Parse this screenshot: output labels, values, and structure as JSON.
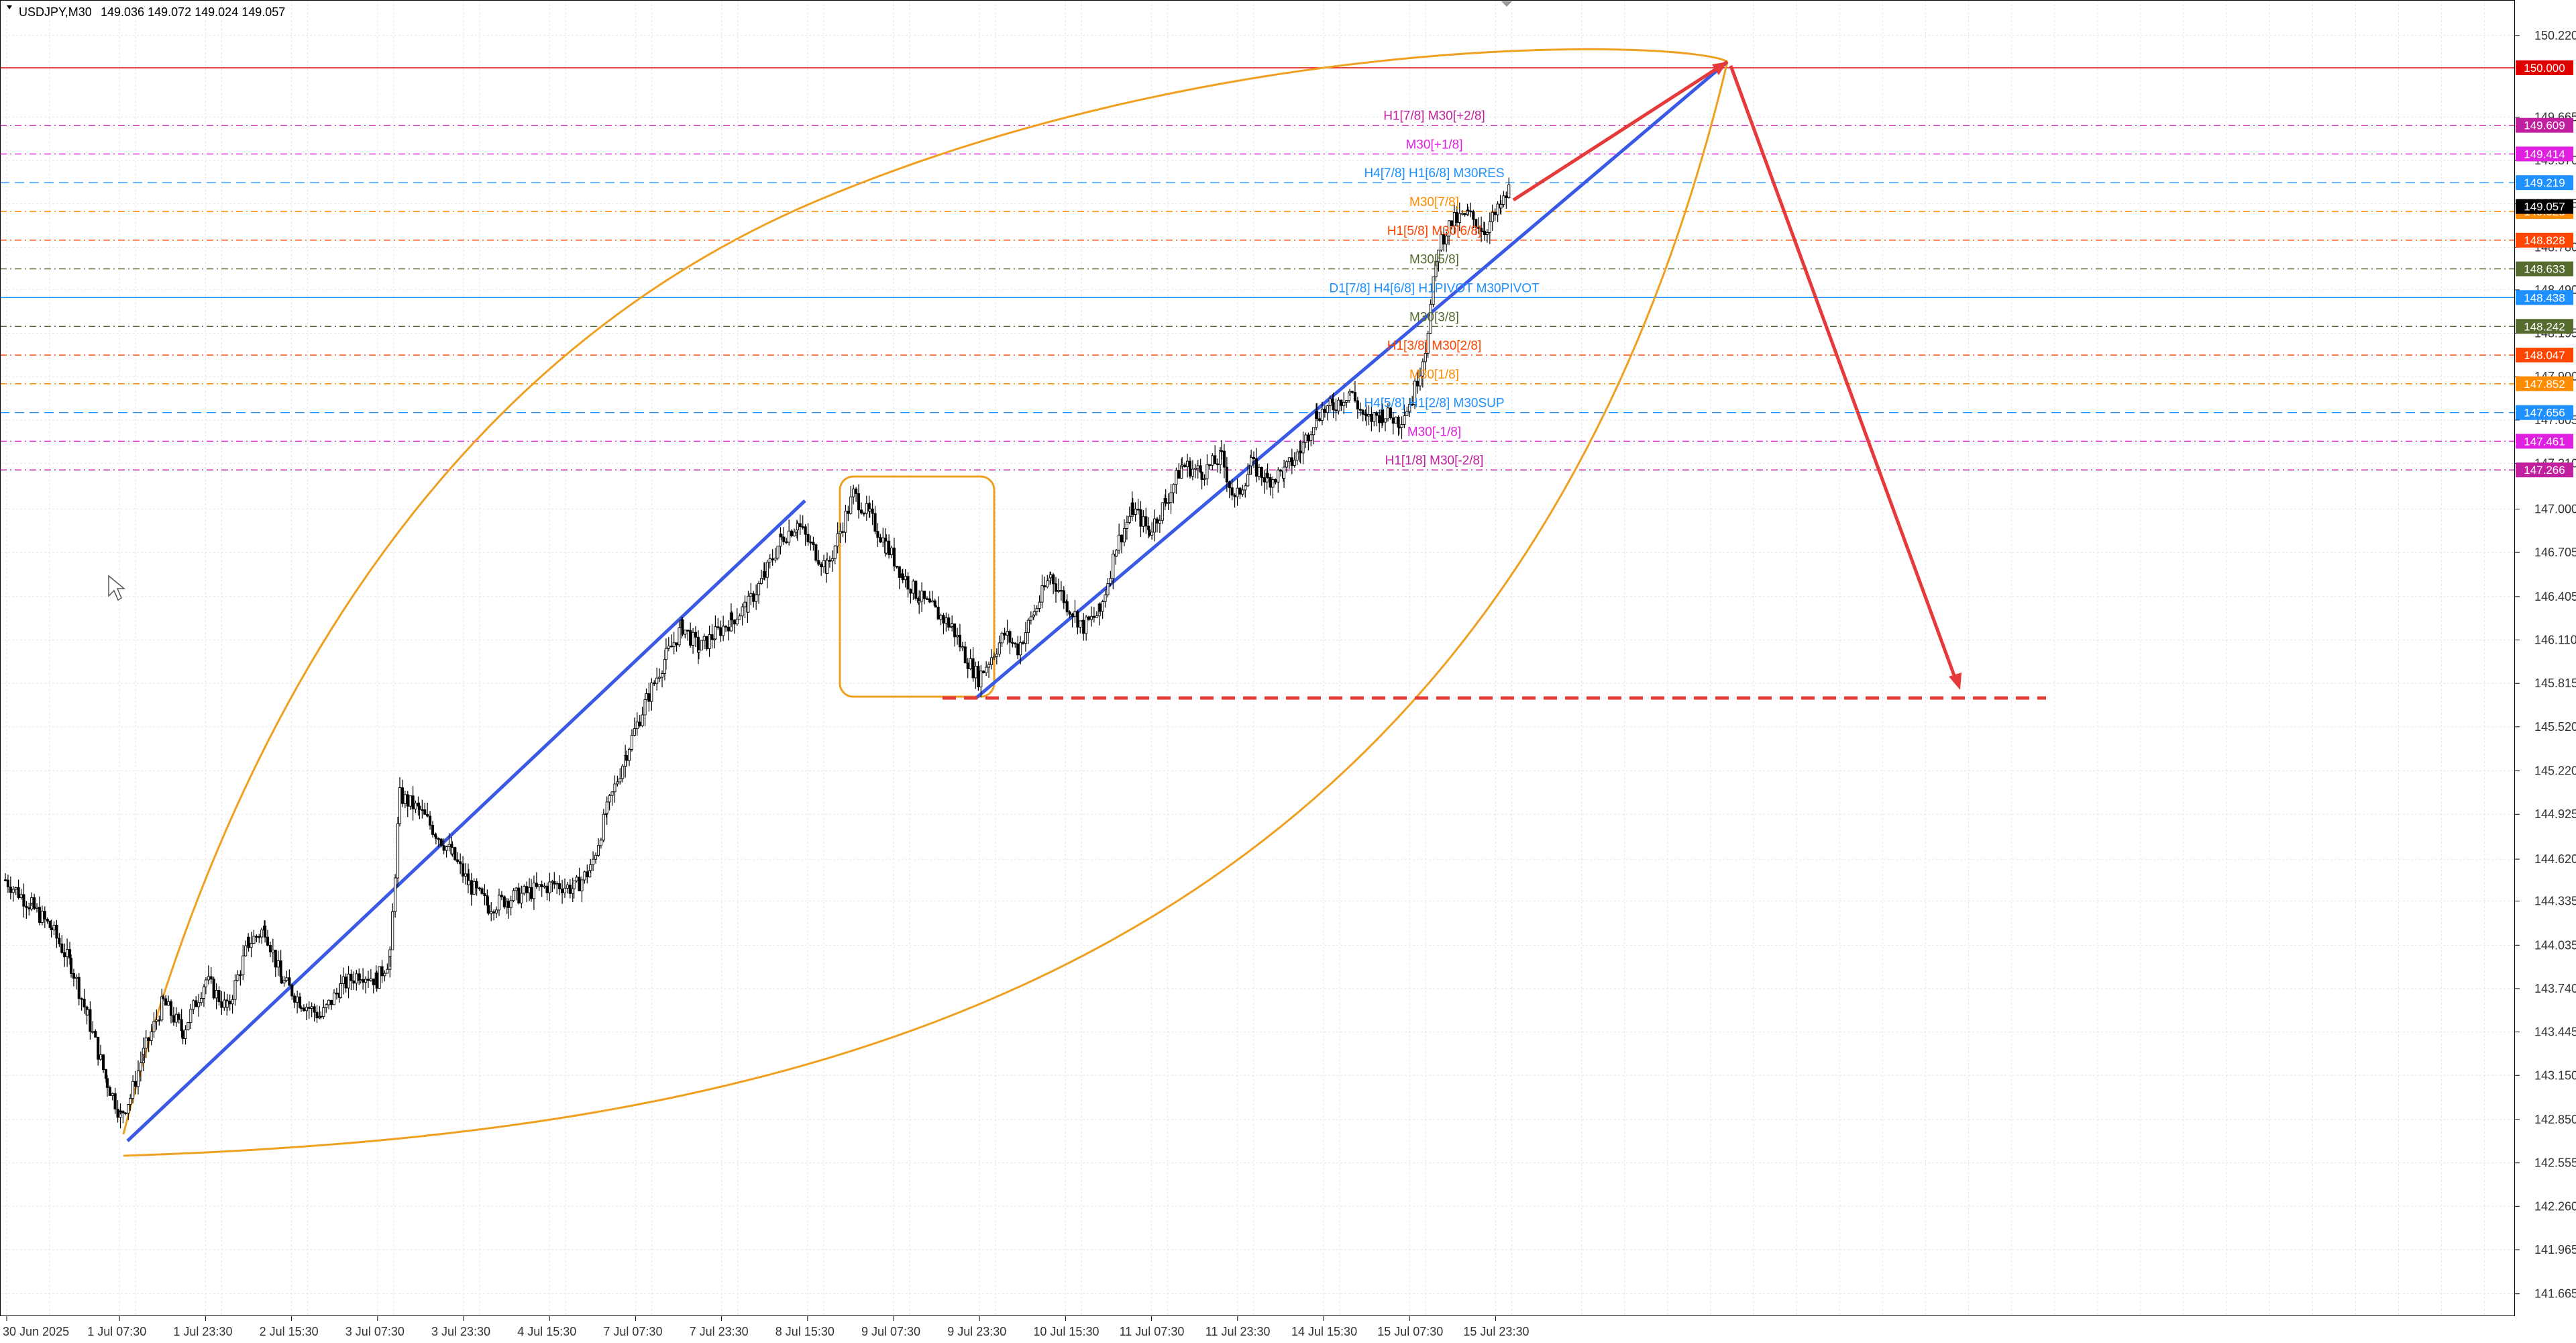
{
  "header": {
    "symbol": "USDJPY,M30",
    "ohlc": "149.036 149.072 149.024 149.057"
  },
  "chart_data": {
    "type": "candlestick",
    "symbol": "USDJPY",
    "timeframe": "M30",
    "ylim": [
      141.4,
      150.4
    ],
    "grid": true,
    "y_ticks": [
      "150.220",
      "149.665",
      "149.370",
      "149.075",
      "148.780",
      "148.490",
      "148.195",
      "147.900",
      "147.605",
      "147.310",
      "147.000",
      "146.705",
      "146.405",
      "146.110",
      "145.815",
      "145.520",
      "145.220",
      "144.925",
      "144.620",
      "144.335",
      "144.035",
      "143.740",
      "143.445",
      "143.150",
      "142.850",
      "142.555",
      "142.260",
      "141.965",
      "141.665"
    ],
    "x_ticks": [
      "30 Jun 2025",
      "1 Jul 07:30",
      "1 Jul 23:30",
      "2 Jul 15:30",
      "3 Jul 07:30",
      "3 Jul 23:30",
      "4 Jul 15:30",
      "7 Jul 07:30",
      "7 Jul 23:30",
      "8 Jul 15:30",
      "9 Jul 07:30",
      "9 Jul 23:30",
      "10 Jul 15:30",
      "11 Jul 07:30",
      "11 Jul 23:30",
      "14 Jul 15:30",
      "15 Jul 07:30",
      "15 Jul 23:30"
    ],
    "price_path": [
      [
        0,
        144.48
      ],
      [
        16,
        144.3
      ],
      [
        28,
        144.15
      ],
      [
        40,
        143.9
      ],
      [
        50,
        143.55
      ],
      [
        62,
        143.1
      ],
      [
        70,
        142.88
      ],
      [
        76,
        143.0
      ],
      [
        84,
        143.3
      ],
      [
        96,
        143.65
      ],
      [
        108,
        143.45
      ],
      [
        122,
        143.8
      ],
      [
        135,
        143.6
      ],
      [
        148,
        144.05
      ],
      [
        158,
        144.15
      ],
      [
        168,
        143.8
      ],
      [
        180,
        143.65
      ],
      [
        192,
        143.55
      ],
      [
        204,
        143.75
      ],
      [
        216,
        143.85
      ],
      [
        226,
        143.8
      ],
      [
        234,
        143.95
      ],
      [
        240,
        145.05
      ],
      [
        252,
        144.95
      ],
      [
        262,
        144.8
      ],
      [
        272,
        144.65
      ],
      [
        282,
        144.45
      ],
      [
        294,
        144.3
      ],
      [
        306,
        144.35
      ],
      [
        320,
        144.4
      ],
      [
        334,
        144.45
      ],
      [
        346,
        144.42
      ],
      [
        356,
        144.55
      ],
      [
        366,
        144.95
      ],
      [
        378,
        145.35
      ],
      [
        390,
        145.7
      ],
      [
        402,
        146.0
      ],
      [
        412,
        146.2
      ],
      [
        422,
        146.05
      ],
      [
        432,
        146.15
      ],
      [
        442,
        146.25
      ],
      [
        452,
        146.35
      ],
      [
        462,
        146.55
      ],
      [
        472,
        146.8
      ],
      [
        482,
        146.9
      ],
      [
        490,
        146.75
      ],
      [
        500,
        146.6
      ],
      [
        508,
        146.85
      ],
      [
        516,
        147.1
      ],
      [
        526,
        146.95
      ],
      [
        536,
        146.75
      ],
      [
        546,
        146.55
      ],
      [
        556,
        146.4
      ],
      [
        566,
        146.3
      ],
      [
        576,
        146.2
      ],
      [
        584,
        146.0
      ],
      [
        592,
        145.85
      ],
      [
        600,
        146.0
      ],
      [
        608,
        146.15
      ],
      [
        616,
        146.05
      ],
      [
        626,
        146.3
      ],
      [
        636,
        146.55
      ],
      [
        646,
        146.35
      ],
      [
        656,
        146.2
      ],
      [
        666,
        146.3
      ],
      [
        676,
        146.75
      ],
      [
        686,
        147.0
      ],
      [
        696,
        146.85
      ],
      [
        706,
        147.05
      ],
      [
        716,
        147.3
      ],
      [
        728,
        147.25
      ],
      [
        740,
        147.35
      ],
      [
        748,
        147.05
      ],
      [
        758,
        147.3
      ],
      [
        768,
        147.2
      ],
      [
        778,
        147.25
      ],
      [
        788,
        147.4
      ],
      [
        798,
        147.65
      ],
      [
        808,
        147.7
      ],
      [
        818,
        147.8
      ],
      [
        828,
        147.6
      ],
      [
        838,
        147.65
      ],
      [
        848,
        147.6
      ],
      [
        856,
        147.75
      ],
      [
        864,
        148.1
      ],
      [
        872,
        148.8
      ],
      [
        880,
        148.95
      ],
      [
        890,
        149.0
      ],
      [
        900,
        148.9
      ],
      [
        910,
        149.05
      ],
      [
        916,
        149.2
      ]
    ],
    "levels": [
      {
        "price": 150.0,
        "label": "150.000",
        "color": "#e00000",
        "style": "solid",
        "text": ""
      },
      {
        "price": 149.609,
        "label": "149.609",
        "color": "#c0209e",
        "style": "dashdot",
        "text": "H1[7/8] M30[+2/8]"
      },
      {
        "price": 149.414,
        "label": "149.414",
        "color": "#e020e0",
        "style": "dashdot",
        "text": "M30[+1/8]"
      },
      {
        "price": 149.219,
        "label": "149.219",
        "color": "#1e90ff",
        "style": "dashed",
        "text": "H4[7/8] H1[6/8] M30RES"
      },
      {
        "price": 149.023,
        "label": "149.023",
        "color": "#ff8c00",
        "style": "dashdot",
        "text": "M30[7/8]"
      },
      {
        "price": 148.828,
        "label": "148.828",
        "color": "#ff4500",
        "style": "dashdot",
        "text": "H1[5/8] M30[6/8]"
      },
      {
        "price": 148.633,
        "label": "148.633",
        "color": "#556b2f",
        "style": "dashdot",
        "text": "M30[5/8]"
      },
      {
        "price": 148.438,
        "label": "148.438",
        "color": "#1e90ff",
        "style": "solid",
        "text": "D1[7/8] H4[6/8] H1PIVOT M30PIVOT"
      },
      {
        "price": 148.242,
        "label": "148.242",
        "color": "#556b2f",
        "style": "dashdot",
        "text": "M30[3/8]"
      },
      {
        "price": 148.047,
        "label": "148.047",
        "color": "#ff4500",
        "style": "dashdot",
        "text": "H1[3/8] M30[2/8]"
      },
      {
        "price": 147.852,
        "label": "147.852",
        "color": "#ff8c00",
        "style": "dashdot",
        "text": "M30[1/8]"
      },
      {
        "price": 147.656,
        "label": "147.656",
        "color": "#1e90ff",
        "style": "dashed",
        "text": "H4[5/8] H1[2/8] M30SUP"
      },
      {
        "price": 147.461,
        "label": "147.461",
        "color": "#e020e0",
        "style": "dashdot",
        "text": "M30[-1/8]"
      },
      {
        "price": 147.266,
        "label": "147.266",
        "color": "#c0209e",
        "style": "dashdot",
        "text": "H1[1/8] M30[-2/8]"
      }
    ],
    "current_price": "149.057",
    "annotations": {
      "up_trendline_1": [
        [
          0,
          142.7
        ],
        [
          1180,
          146.95
        ]
      ],
      "up_trendline_2": [
        [
          0,
          145.72
        ],
        [
          1120,
          150.0
        ]
      ],
      "projection_up": [
        [
          0,
          149.12
        ],
        [
          1120,
          150.0
        ]
      ],
      "projection_down": [
        [
          0,
          150.0
        ],
        [
          1120,
          145.82
        ]
      ],
      "support_dashed": 145.72,
      "consolidation_box": [
        146.98,
        145.72
      ]
    }
  },
  "colors": {
    "background": "#ffffff",
    "grid": "#e6e6e6",
    "candles": "#000000",
    "trendline": "#3a5ae6",
    "projection": "#e63a3a",
    "arc": "#f0a020",
    "axis_text": "#333333"
  }
}
